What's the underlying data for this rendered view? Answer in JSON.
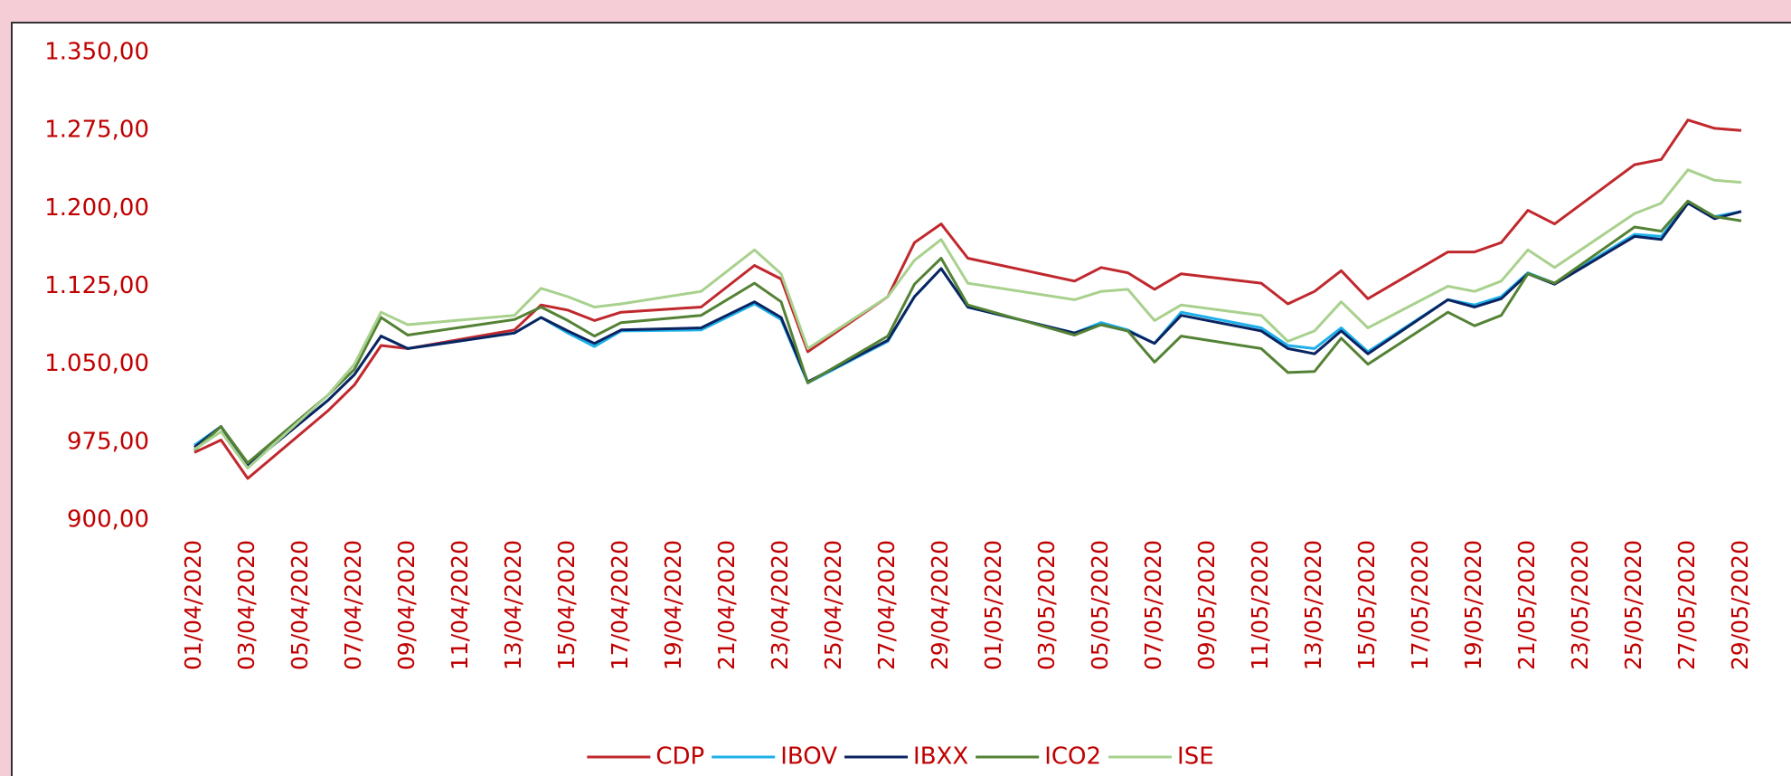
{
  "chart_data": {
    "type": "line",
    "x": [
      "01/04/2020",
      "02/04/2020",
      "03/04/2020",
      "06/04/2020",
      "07/04/2020",
      "08/04/2020",
      "09/04/2020",
      "13/04/2020",
      "14/04/2020",
      "15/04/2020",
      "16/04/2020",
      "17/04/2020",
      "20/04/2020",
      "22/04/2020",
      "23/04/2020",
      "24/04/2020",
      "27/04/2020",
      "28/04/2020",
      "29/04/2020",
      "30/04/2020",
      "04/05/2020",
      "05/05/2020",
      "06/05/2020",
      "07/05/2020",
      "08/05/2020",
      "11/05/2020",
      "12/05/2020",
      "13/05/2020",
      "14/05/2020",
      "15/05/2020",
      "18/05/2020",
      "19/05/2020",
      "20/05/2020",
      "21/05/2020",
      "22/05/2020",
      "25/05/2020",
      "26/05/2020",
      "27/05/2020",
      "28/05/2020",
      "29/05/2020"
    ],
    "series": [
      {
        "name": "CDP",
        "color": "#c0282d",
        "values": [
          965,
          977,
          940,
          1005,
          1030,
          1068,
          1065,
          1083,
          1107,
          1102,
          1092,
          1100,
          1105,
          1145,
          1132,
          1062,
          1115,
          1167,
          1185,
          1152,
          1130,
          1143,
          1138,
          1122,
          1137,
          1128,
          1108,
          1120,
          1140,
          1113,
          1158,
          1158,
          1167,
          1198,
          1185,
          1242,
          1247,
          1285,
          1277,
          1275
        ]
      },
      {
        "name": "IBOV",
        "color": "#1eb0ea",
        "values": [
          972,
          990,
          952,
          1015,
          1040,
          1077,
          1065,
          1080,
          1095,
          1080,
          1067,
          1082,
          1083,
          1108,
          1093,
          1032,
          1072,
          1115,
          1142,
          1105,
          1080,
          1090,
          1083,
          1070,
          1100,
          1085,
          1068,
          1065,
          1085,
          1062,
          1112,
          1107,
          1115,
          1138,
          1128,
          1175,
          1173,
          1205,
          1192,
          1197
        ]
      },
      {
        "name": "IBXX",
        "color": "#0a2361",
        "values": [
          970,
          990,
          952,
          1015,
          1040,
          1077,
          1065,
          1080,
          1095,
          1082,
          1070,
          1083,
          1085,
          1110,
          1095,
          1033,
          1073,
          1115,
          1142,
          1105,
          1080,
          1088,
          1082,
          1070,
          1097,
          1082,
          1065,
          1060,
          1082,
          1060,
          1112,
          1105,
          1113,
          1137,
          1127,
          1173,
          1170,
          1205,
          1190,
          1197
        ]
      },
      {
        "name": "ICO2",
        "color": "#548235",
        "values": [
          967,
          990,
          955,
          1020,
          1045,
          1095,
          1078,
          1093,
          1105,
          1092,
          1077,
          1090,
          1097,
          1128,
          1110,
          1032,
          1077,
          1127,
          1152,
          1107,
          1078,
          1088,
          1082,
          1052,
          1077,
          1065,
          1042,
          1043,
          1075,
          1050,
          1100,
          1087,
          1097,
          1137,
          1128,
          1182,
          1178,
          1207,
          1192,
          1188
        ]
      },
      {
        "name": "ISE",
        "color": "#a9d18e",
        "values": [
          968,
          985,
          950,
          1020,
          1050,
          1100,
          1088,
          1097,
          1123,
          1115,
          1105,
          1108,
          1120,
          1160,
          1137,
          1065,
          1115,
          1150,
          1170,
          1128,
          1112,
          1120,
          1122,
          1092,
          1107,
          1097,
          1072,
          1082,
          1110,
          1085,
          1125,
          1120,
          1130,
          1160,
          1143,
          1195,
          1205,
          1237,
          1227,
          1225
        ]
      }
    ],
    "xlim": [
      "01/04/2020",
      "29/05/2020"
    ],
    "xticks": [
      "01/04/2020",
      "03/04/2020",
      "05/04/2020",
      "07/04/2020",
      "09/04/2020",
      "11/04/2020",
      "13/04/2020",
      "15/04/2020",
      "17/04/2020",
      "19/04/2020",
      "21/04/2020",
      "23/04/2020",
      "25/04/2020",
      "27/04/2020",
      "29/04/2020",
      "01/05/2020",
      "03/05/2020",
      "05/05/2020",
      "07/05/2020",
      "09/05/2020",
      "11/05/2020",
      "13/05/2020",
      "15/05/2020",
      "17/05/2020",
      "19/05/2020",
      "21/05/2020",
      "23/05/2020",
      "25/05/2020",
      "27/05/2020",
      "29/05/2020"
    ],
    "ylim": [
      900,
      1350
    ],
    "yticks": [
      {
        "value": 900,
        "label": "900,00"
      },
      {
        "value": 975,
        "label": "975,00"
      },
      {
        "value": 1050,
        "label": "1.050,00"
      },
      {
        "value": 1125,
        "label": "1.125,00"
      },
      {
        "value": 1200,
        "label": "1.200,00"
      },
      {
        "value": 1275,
        "label": "1.275,00"
      },
      {
        "value": 1350,
        "label": "1.350,00"
      }
    ],
    "grid": false,
    "legend": "bottom"
  }
}
